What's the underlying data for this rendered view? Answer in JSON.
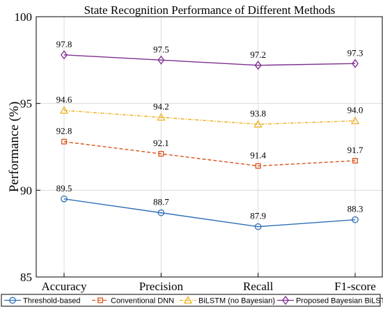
{
  "chart_data": {
    "type": "line",
    "title": "State Recognition Performance of Different Methods",
    "xlabel": "",
    "ylabel": "Performance (%)",
    "categories": [
      "Accuracy",
      "Precision",
      "Recall",
      "F1-score"
    ],
    "ylim": [
      85,
      100
    ],
    "yticks": [
      "85",
      "90",
      "95",
      "100"
    ],
    "grid": true,
    "legend_position": "bottom",
    "series": [
      {
        "name": "Threshold-based",
        "values": [
          89.5,
          88.7,
          87.9,
          88.3
        ],
        "labels": [
          "89.5",
          "88.7",
          "87.9",
          "88.3"
        ],
        "color": "#2f6fb5",
        "marker": "circle",
        "dash": "solid"
      },
      {
        "name": "Conventional DNN",
        "values": [
          92.8,
          92.1,
          91.4,
          91.7
        ],
        "labels": [
          "92.8",
          "92.1",
          "91.4",
          "91.7"
        ],
        "color": "#d95319",
        "marker": "square",
        "dash": "dashed"
      },
      {
        "name": "BiLSTM (no Bayesian)",
        "values": [
          94.6,
          94.2,
          93.8,
          94.0
        ],
        "labels": [
          "94.6",
          "94.2",
          "93.8",
          "94.0"
        ],
        "color": "#edb120",
        "marker": "triangle",
        "dash": "dashdot"
      },
      {
        "name": "Proposed Bayesian BiLSTM",
        "values": [
          97.8,
          97.5,
          97.2,
          97.3
        ],
        "labels": [
          "97.8",
          "97.5",
          "97.2",
          "97.3"
        ],
        "color": "#7e2f8e",
        "marker": "diamond",
        "dash": "solid"
      }
    ]
  }
}
